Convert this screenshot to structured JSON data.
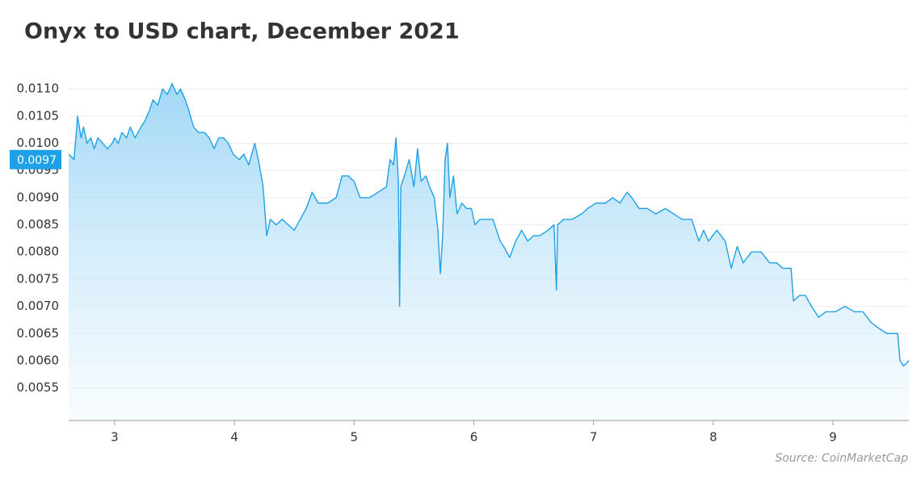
{
  "chart_data": {
    "type": "area",
    "title": "Onyx to USD chart, December 2021",
    "source": "Source: CoinMarketCap",
    "current_price": 0.0097,
    "color": "#1ea1e6",
    "grid": true,
    "xlim": [
      2.616,
      9.634
    ],
    "xticks": [
      3,
      4,
      5,
      6,
      7,
      8,
      9
    ],
    "ylim": [
      0.0049,
      0.0113
    ],
    "yticks": [
      {
        "value": 0.0055,
        "label": "0.0055"
      },
      {
        "value": 0.006,
        "label": "0.0060"
      },
      0.0065,
      {
        "value": 0.007,
        "label": "0.0070"
      },
      0.0075,
      {
        "value": 0.008,
        "label": "0.0080"
      },
      0.0085,
      {
        "value": 0.009,
        "label": "0.0090"
      },
      0.0095,
      {
        "value": 0.01,
        "label": "0.0100"
      },
      0.0105,
      {
        "value": 0.011,
        "label": "0.0110"
      }
    ],
    "x": [
      2.616,
      2.64,
      2.66,
      2.68,
      2.69,
      2.72,
      2.74,
      2.77,
      2.8,
      2.83,
      2.86,
      2.9,
      2.94,
      2.98,
      3.0,
      3.03,
      3.06,
      3.1,
      3.13,
      3.17,
      3.22,
      3.25,
      3.29,
      3.32,
      3.36,
      3.4,
      3.44,
      3.48,
      3.52,
      3.55,
      3.59,
      3.62,
      3.66,
      3.7,
      3.75,
      3.79,
      3.83,
      3.87,
      3.91,
      3.95,
      3.99,
      4.04,
      4.08,
      4.12,
      4.17,
      4.2,
      4.24,
      4.26,
      4.27,
      4.3,
      4.35,
      4.4,
      4.45,
      4.5,
      4.55,
      4.6,
      4.65,
      4.7,
      4.78,
      4.85,
      4.9,
      4.95,
      5.0,
      5.05,
      5.13,
      5.2,
      5.27,
      5.3,
      5.33,
      5.35,
      5.37,
      5.38,
      5.39,
      5.42,
      5.46,
      5.5,
      5.53,
      5.56,
      5.6,
      5.63,
      5.67,
      5.7,
      5.72,
      5.74,
      5.76,
      5.78,
      5.8,
      5.83,
      5.86,
      5.9,
      5.94,
      5.98,
      6.01,
      6.05,
      6.1,
      6.16,
      6.22,
      6.25,
      6.3,
      6.35,
      6.4,
      6.45,
      6.5,
      6.55,
      6.62,
      6.67,
      6.69,
      6.7,
      6.75,
      6.82,
      6.9,
      6.95,
      7.02,
      7.1,
      7.16,
      7.22,
      7.28,
      7.32,
      7.38,
      7.45,
      7.52,
      7.6,
      7.67,
      7.74,
      7.82,
      7.88,
      7.92,
      7.96,
      8.03,
      8.1,
      8.15,
      8.2,
      8.25,
      8.32,
      8.4,
      8.47,
      8.53,
      8.58,
      8.65,
      8.67,
      8.72,
      8.77,
      8.82,
      8.88,
      8.94,
      9.02,
      9.1,
      9.18,
      9.25,
      9.32,
      9.38,
      9.45,
      9.5,
      9.54,
      9.56,
      9.59,
      9.634
    ],
    "values": [
      0.0098,
      0.00975,
      0.0097,
      0.0102,
      0.0105,
      0.0101,
      0.0103,
      0.01,
      0.0101,
      0.0099,
      0.0101,
      0.01,
      0.0099,
      0.01,
      0.0101,
      0.01,
      0.0102,
      0.0101,
      0.0103,
      0.0101,
      0.0103,
      0.0104,
      0.0106,
      0.0108,
      0.0107,
      0.011,
      0.0109,
      0.0111,
      0.0109,
      0.011,
      0.0108,
      0.0106,
      0.0103,
      0.0102,
      0.0102,
      0.0101,
      0.0099,
      0.0101,
      0.0101,
      0.01,
      0.0098,
      0.0097,
      0.0098,
      0.0096,
      0.01,
      0.0097,
      0.0092,
      0.0086,
      0.0083,
      0.0086,
      0.0085,
      0.0086,
      0.0085,
      0.0084,
      0.0086,
      0.0088,
      0.0091,
      0.0089,
      0.0089,
      0.009,
      0.0094,
      0.0094,
      0.0093,
      0.009,
      0.009,
      0.0091,
      0.0092,
      0.0097,
      0.0096,
      0.0101,
      0.0093,
      0.007,
      0.0092,
      0.0094,
      0.0097,
      0.0092,
      0.0099,
      0.0093,
      0.0094,
      0.0092,
      0.009,
      0.0084,
      0.0076,
      0.0083,
      0.0097,
      0.01,
      0.009,
      0.0094,
      0.0087,
      0.0089,
      0.0088,
      0.0088,
      0.0085,
      0.0086,
      0.0086,
      0.0086,
      0.0082,
      0.0081,
      0.0079,
      0.0082,
      0.0084,
      0.0082,
      0.0083,
      0.0083,
      0.0084,
      0.0085,
      0.0073,
      0.0085,
      0.0086,
      0.0086,
      0.0087,
      0.0088,
      0.0089,
      0.0089,
      0.009,
      0.0089,
      0.0091,
      0.009,
      0.0088,
      0.0088,
      0.0087,
      0.0088,
      0.0087,
      0.0086,
      0.0086,
      0.0082,
      0.0084,
      0.0082,
      0.0084,
      0.0082,
      0.0077,
      0.0081,
      0.0078,
      0.008,
      0.008,
      0.0078,
      0.0078,
      0.0077,
      0.0077,
      0.0071,
      0.0072,
      0.0072,
      0.007,
      0.0068,
      0.0069,
      0.0069,
      0.007,
      0.0069,
      0.0069,
      0.0067,
      0.0066,
      0.0065,
      0.0065,
      0.0065,
      0.006,
      0.0059,
      0.006
    ]
  }
}
